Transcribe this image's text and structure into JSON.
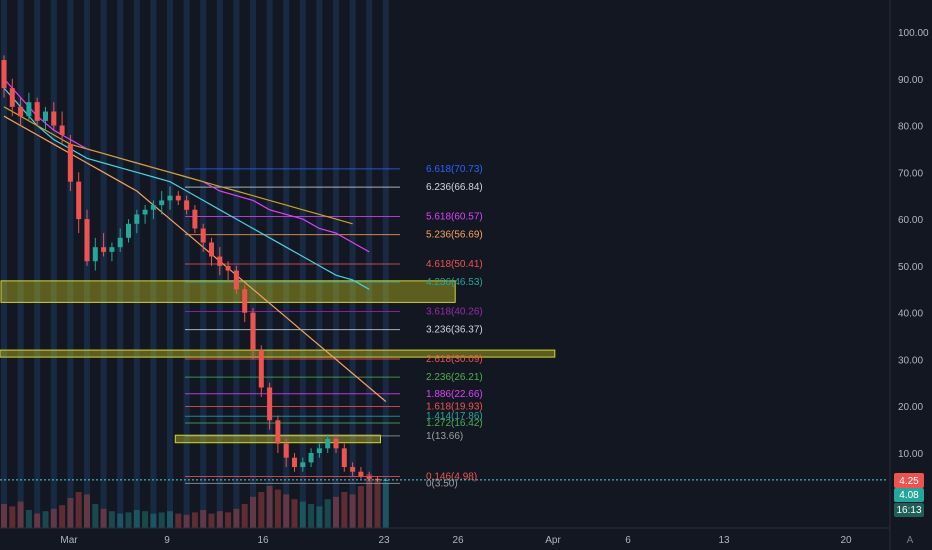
{
  "colors": {
    "background": "#131722",
    "up": "#26a69a",
    "down": "#ef5350",
    "current_price_bg": "#ef5350",
    "prev_price_bg": "#26a69a",
    "countdown_bg": "#26a69a",
    "zone_fill": "#b5b520",
    "axis_text": "#b2b5be",
    "session_bar": "#1e3a5f",
    "price_line": "#4dd0e1"
  },
  "price_axis": {
    "labels": [
      "100.00",
      "90.00",
      "80.00",
      "70.00",
      "60.00",
      "50.00",
      "40.00",
      "30.00",
      "20.00",
      "10.00"
    ],
    "current_price": "4.25",
    "prev_close": "4.08",
    "countdown": "16:13",
    "mode_button": "A"
  },
  "time_axis": {
    "labels": [
      "Mar",
      "9",
      "16",
      "23",
      "26",
      "Apr",
      "6",
      "13",
      "20"
    ]
  },
  "chart_data": {
    "type": "candlestick",
    "ylim": [
      0,
      107
    ],
    "y_scale": "linear",
    "grid": false,
    "candles": [
      {
        "o": 94,
        "h": 95,
        "l": 86,
        "c": 88
      },
      {
        "o": 88,
        "h": 90,
        "l": 82,
        "c": 84
      },
      {
        "o": 84,
        "h": 86,
        "l": 80,
        "c": 82
      },
      {
        "o": 82,
        "h": 87,
        "l": 81,
        "c": 85
      },
      {
        "o": 85,
        "h": 86,
        "l": 80,
        "c": 81
      },
      {
        "o": 81,
        "h": 84,
        "l": 79,
        "c": 83
      },
      {
        "o": 83,
        "h": 85,
        "l": 79,
        "c": 80
      },
      {
        "o": 80,
        "h": 83,
        "l": 76,
        "c": 78
      },
      {
        "o": 76,
        "h": 78,
        "l": 66,
        "c": 68
      },
      {
        "o": 68,
        "h": 70,
        "l": 57,
        "c": 60
      },
      {
        "o": 60,
        "h": 62,
        "l": 50,
        "c": 51
      },
      {
        "o": 51,
        "h": 56,
        "l": 49,
        "c": 54
      },
      {
        "o": 54,
        "h": 57,
        "l": 52,
        "c": 53
      },
      {
        "o": 53,
        "h": 55,
        "l": 51,
        "c": 54
      },
      {
        "o": 54,
        "h": 58,
        "l": 53,
        "c": 56
      },
      {
        "o": 56,
        "h": 60,
        "l": 55,
        "c": 59
      },
      {
        "o": 59,
        "h": 62,
        "l": 57,
        "c": 61
      },
      {
        "o": 61,
        "h": 63,
        "l": 59,
        "c": 62
      },
      {
        "o": 62,
        "h": 64,
        "l": 60,
        "c": 63
      },
      {
        "o": 63,
        "h": 66,
        "l": 61,
        "c": 64
      },
      {
        "o": 64,
        "h": 67,
        "l": 62,
        "c": 65
      },
      {
        "o": 65,
        "h": 66,
        "l": 63,
        "c": 64
      },
      {
        "o": 64,
        "h": 65,
        "l": 61,
        "c": 62
      },
      {
        "o": 62,
        "h": 63,
        "l": 57,
        "c": 58
      },
      {
        "o": 58,
        "h": 59,
        "l": 53,
        "c": 55
      },
      {
        "o": 55,
        "h": 56,
        "l": 50,
        "c": 52
      },
      {
        "o": 52,
        "h": 54,
        "l": 48,
        "c": 50
      },
      {
        "o": 50,
        "h": 51,
        "l": 47,
        "c": 49
      },
      {
        "o": 49,
        "h": 50,
        "l": 44,
        "c": 45
      },
      {
        "o": 45,
        "h": 46,
        "l": 38,
        "c": 40
      },
      {
        "o": 40,
        "h": 41,
        "l": 30,
        "c": 32
      },
      {
        "o": 32,
        "h": 33,
        "l": 22,
        "c": 24
      },
      {
        "o": 24,
        "h": 25,
        "l": 15,
        "c": 17
      },
      {
        "o": 17,
        "h": 18,
        "l": 10,
        "c": 12
      },
      {
        "o": 12,
        "h": 13,
        "l": 7,
        "c": 9
      },
      {
        "o": 9,
        "h": 10,
        "l": 6,
        "c": 7
      },
      {
        "o": 7,
        "h": 9,
        "l": 6,
        "c": 8
      },
      {
        "o": 8,
        "h": 11,
        "l": 7,
        "c": 10
      },
      {
        "o": 10,
        "h": 12,
        "l": 9,
        "c": 11
      },
      {
        "o": 11,
        "h": 14,
        "l": 10,
        "c": 13
      },
      {
        "o": 13,
        "h": 14,
        "l": 10,
        "c": 11
      },
      {
        "o": 11,
        "h": 12,
        "l": 6,
        "c": 7
      },
      {
        "o": 7,
        "h": 8,
        "l": 5,
        "c": 6
      },
      {
        "o": 6,
        "h": 7,
        "l": 4.5,
        "c": 5
      },
      {
        "o": 5,
        "h": 6,
        "l": 4,
        "c": 4.5
      },
      {
        "o": 4.5,
        "h": 5,
        "l": 3.8,
        "c": 4.2
      },
      {
        "o": 4.2,
        "h": 4.6,
        "l": 3.9,
        "c": 4.25
      }
    ],
    "fib_levels": [
      {
        "label": "6.618(70.73)",
        "value": 70.73,
        "color": "#2962ff"
      },
      {
        "label": "6.236(66.84)",
        "value": 66.84,
        "color": "#d1d4dc"
      },
      {
        "label": "5.618(60.57)",
        "value": 60.57,
        "color": "#e040fb"
      },
      {
        "label": "5.236(56.69)",
        "value": 56.69,
        "color": "#f7a35c"
      },
      {
        "label": "4.618(50.41)",
        "value": 50.41,
        "color": "#ef5350"
      },
      {
        "label": "4.236(46.53)",
        "value": 46.53,
        "color": "#26a69a"
      },
      {
        "label": "3.618(40.26)",
        "value": 40.26,
        "color": "#9c27b0"
      },
      {
        "label": "3.236(36.37)",
        "value": 36.37,
        "color": "#d1d4dc"
      },
      {
        "label": "2.618(30.09)",
        "value": 30.09,
        "color": "#ef5350"
      },
      {
        "label": "2.236(26.21)",
        "value": 26.21,
        "color": "#4caf50"
      },
      {
        "label": "1.886(22.66)",
        "value": 22.66,
        "color": "#e040fb"
      },
      {
        "label": "1.618(19.93)",
        "value": 19.93,
        "color": "#ef5350"
      },
      {
        "label": "1.414(17.86)",
        "value": 17.86,
        "color": "#26a69a"
      },
      {
        "label": "1.272(16.42)",
        "value": 16.42,
        "color": "#4caf50"
      },
      {
        "label": "1(13.66)",
        "value": 13.66,
        "color": "#9e9e9e"
      },
      {
        "label": "0.146(4.98)",
        "value": 4.98,
        "color": "#ef5350"
      },
      {
        "label": "0(3.50)",
        "value": 3.5,
        "color": "#9e9e9e"
      }
    ],
    "zones": [
      {
        "top": 46.8,
        "bottom": 42.2,
        "from_bar": 0,
        "to_bar": 54
      },
      {
        "top": 32.0,
        "bottom": 30.5,
        "from_bar": -10,
        "to_bar": 66
      },
      {
        "top": 13.8,
        "bottom": 12.2,
        "from_bar": 21,
        "to_bar": 45
      }
    ],
    "moving_averages": [
      {
        "color": "#f7a35c",
        "values": [
          82,
          80,
          78,
          76,
          74,
          72,
          70,
          68,
          66,
          63,
          60,
          57,
          54,
          51,
          48,
          45,
          42,
          39,
          36,
          33,
          30,
          27,
          24,
          21
        ]
      },
      {
        "color": "#4dd0e1",
        "values": [
          88,
          84,
          80,
          77,
          75,
          73,
          72,
          71,
          70,
          69,
          68,
          66,
          64,
          62,
          60,
          58,
          56,
          54,
          52,
          50,
          48,
          47,
          45
        ]
      },
      {
        "color": "#e040fb",
        "values": [
          90,
          86,
          82,
          79,
          77,
          75,
          74,
          73,
          72,
          71,
          70,
          69,
          68,
          66,
          65,
          64,
          62,
          61,
          60,
          58,
          57,
          55,
          53
        ]
      },
      {
        "color": "#c9a227",
        "values": [
          84,
          82,
          80,
          78,
          76,
          75,
          74,
          73,
          72,
          71,
          70,
          69,
          68,
          67,
          66,
          65,
          64,
          63,
          62,
          61,
          60,
          59
        ]
      }
    ],
    "volume": [
      20,
      18,
      22,
      15,
      12,
      14,
      16,
      19,
      25,
      30,
      28,
      20,
      16,
      14,
      12,
      13,
      15,
      14,
      12,
      13,
      14,
      12,
      11,
      13,
      15,
      12,
      14,
      13,
      16,
      20,
      26,
      30,
      35,
      32,
      28,
      24,
      22,
      20,
      18,
      24,
      26,
      30,
      28,
      35,
      45,
      40,
      38
    ]
  }
}
